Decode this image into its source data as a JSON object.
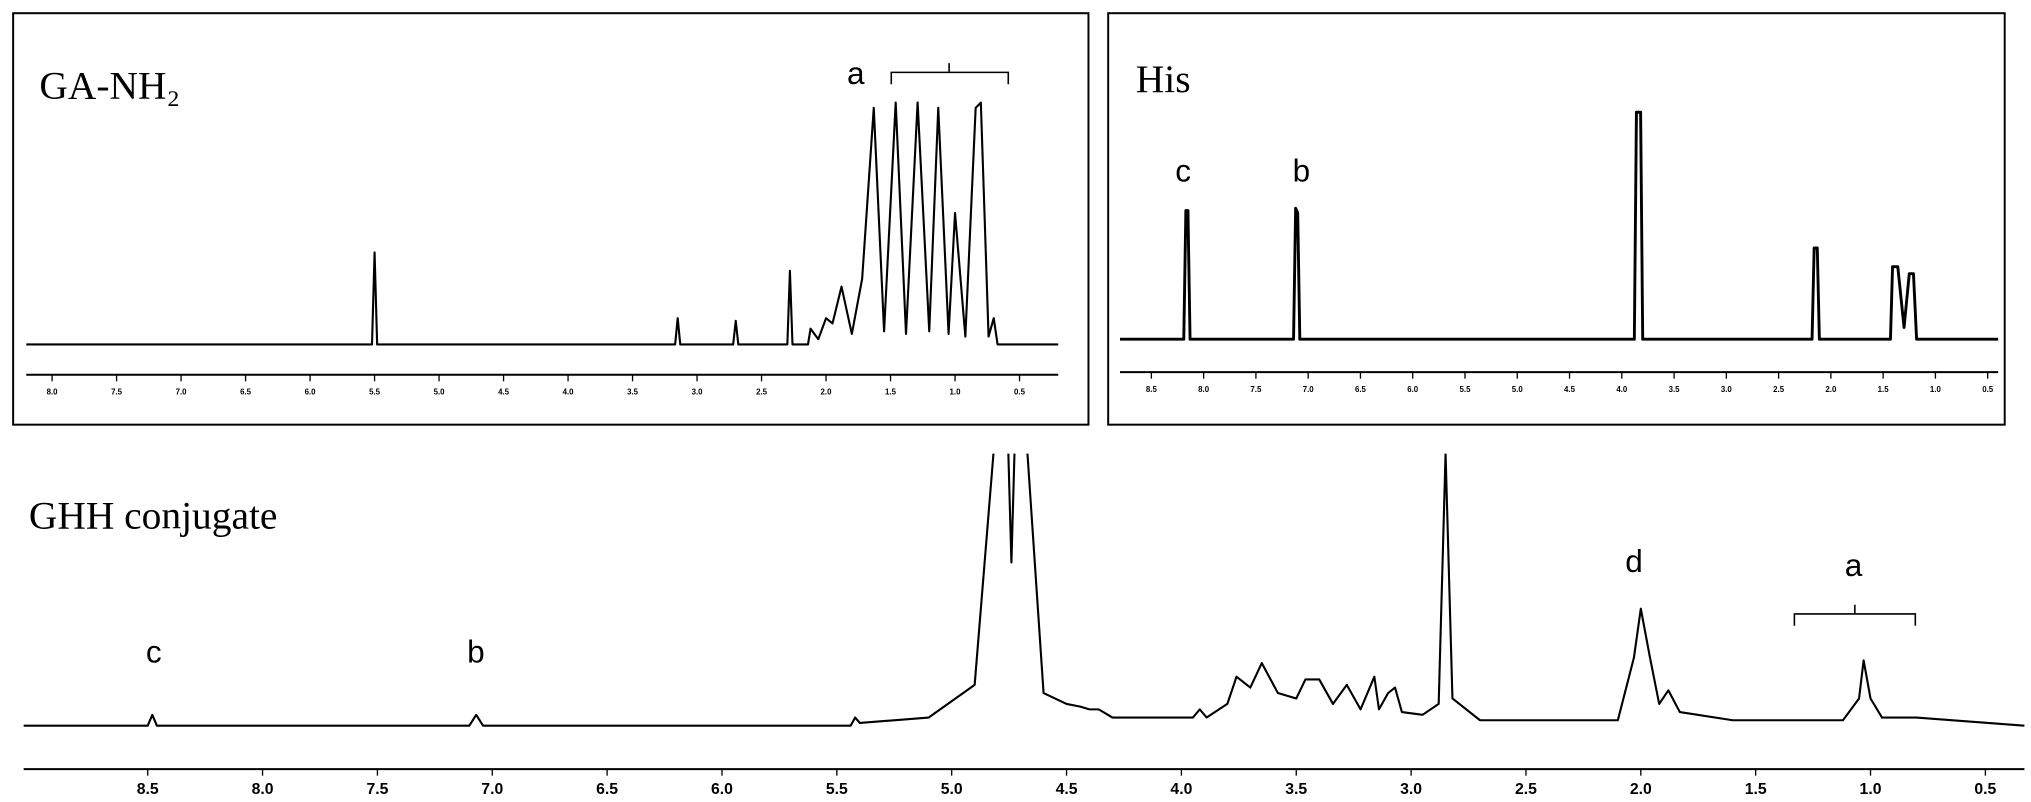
{
  "chart_data": [
    {
      "type": "line",
      "title": "GA-NH₂",
      "color": "#000000",
      "xlim": [
        8.2,
        0.2
      ],
      "ylim": [
        0,
        100
      ],
      "xticks": [
        {
          "value": 8,
          "label": "8.0"
        },
        7.5,
        {
          "value": 7,
          "label": "7.0"
        },
        6.5,
        {
          "value": 6,
          "label": "6.0"
        },
        5.5,
        {
          "value": 5,
          "label": "5.0"
        },
        4.5,
        {
          "value": 4,
          "label": "4.0"
        },
        3.5,
        {
          "value": 3,
          "label": "3.0"
        },
        2.5,
        {
          "value": 2,
          "label": "2.0"
        },
        1.5,
        {
          "value": 1,
          "label": "1.0"
        },
        0.5
      ],
      "annotations": [
        "a"
      ],
      "x": [
        8.2,
        5.52,
        5.5,
        5.48,
        3.17,
        3.15,
        3.13,
        2.72,
        2.7,
        2.68,
        2.3,
        2.28,
        2.26,
        2.14,
        2.12,
        2.06,
        2.0,
        1.95,
        1.88,
        1.8,
        1.72,
        1.63,
        1.55,
        1.46,
        1.38,
        1.29,
        1.2,
        1.13,
        1.05,
        1.0,
        0.92,
        0.84,
        0.8,
        0.74,
        0.7,
        0.67,
        0.2
      ],
      "values": [
        0,
        0,
        35,
        0,
        0,
        10,
        0,
        0,
        9,
        0,
        0,
        28,
        0,
        0,
        6,
        2,
        10,
        8,
        22,
        4,
        25,
        90,
        5,
        92,
        4,
        92,
        5,
        90,
        4,
        50,
        3,
        90,
        92,
        3,
        10,
        0,
        0
      ]
    },
    {
      "type": "line",
      "title": "His",
      "color": "#000000",
      "xlim": [
        8.8,
        0.4
      ],
      "ylim": [
        0,
        100
      ],
      "xticks": [
        8.5,
        {
          "value": 8,
          "label": "8.0"
        },
        7.5,
        {
          "value": 7,
          "label": "7.0"
        },
        6.5,
        {
          "value": 6,
          "label": "6.0"
        },
        5.5,
        {
          "value": 5,
          "label": "5.0"
        },
        4.5,
        {
          "value": 4,
          "label": "4.0"
        },
        3.5,
        {
          "value": 3,
          "label": "3.0"
        },
        2.5,
        {
          "value": 2,
          "label": "2.0"
        },
        1.5,
        {
          "value": 1,
          "label": "1.0"
        },
        0.5
      ],
      "annotations": [
        "c",
        "b"
      ],
      "x": [
        8.8,
        8.19,
        8.17,
        8.15,
        8.13,
        7.14,
        7.12,
        7.1,
        7.08,
        3.88,
        3.86,
        3.82,
        3.8,
        2.18,
        2.16,
        2.13,
        2.11,
        1.43,
        1.41,
        1.36,
        1.3,
        1.25,
        1.21,
        1.18,
        0.4
      ],
      "values": [
        0,
        0,
        55,
        55,
        0,
        0,
        56,
        54,
        0,
        0,
        97,
        97,
        0,
        0,
        39,
        39,
        0,
        0,
        31,
        31,
        5,
        28,
        28,
        0,
        0
      ]
    },
    {
      "type": "line",
      "title": "GHH conjugate",
      "color": "#000000",
      "xlim": [
        9.04,
        0.33
      ],
      "ylim": [
        0,
        100
      ],
      "xticks": [
        8.5,
        {
          "value": 8,
          "label": "8.0"
        },
        7.5,
        {
          "value": 7,
          "label": "7.0"
        },
        6.5,
        {
          "value": 6,
          "label": "6.0"
        },
        5.5,
        {
          "value": 5,
          "label": "5.0"
        },
        4.5,
        {
          "value": 4,
          "label": "4.0"
        },
        3.5,
        {
          "value": 3,
          "label": "3.0"
        },
        2.5,
        {
          "value": 2,
          "label": "2.0"
        },
        1.5,
        {
          "value": 1,
          "label": "1.0"
        },
        0.5
      ],
      "annotations": [
        "c",
        "b",
        "d",
        "a"
      ],
      "x": [
        9.04,
        8.5,
        8.48,
        8.46,
        7.1,
        7.07,
        7.04,
        5.44,
        5.42,
        5.4,
        5.1,
        4.9,
        4.77,
        4.74,
        4.71,
        4.6,
        4.5,
        4.44,
        4.4,
        4.36,
        4.3,
        3.95,
        3.92,
        3.89,
        3.8,
        3.76,
        3.7,
        3.65,
        3.58,
        3.5,
        3.46,
        3.4,
        3.34,
        3.28,
        3.22,
        3.16,
        3.14,
        3.1,
        3.07,
        3.04,
        2.95,
        2.88,
        2.85,
        2.82,
        2.7,
        2.1,
        2.03,
        2.0,
        1.96,
        1.92,
        1.88,
        1.83,
        1.6,
        1.12,
        1.05,
        1.03,
        1.0,
        0.95,
        0.8,
        0.33
      ],
      "values": [
        0,
        0,
        4,
        0,
        0,
        4,
        0,
        0,
        3,
        1,
        3,
        15,
        150,
        60,
        150,
        12,
        8,
        7,
        6,
        6,
        3,
        3,
        6,
        3,
        8,
        18,
        14,
        23,
        12,
        10,
        17,
        17,
        8,
        15,
        6,
        18,
        6,
        12,
        14,
        5,
        4,
        8,
        100,
        10,
        2,
        2,
        25,
        43,
        25,
        8,
        13,
        5,
        2,
        2,
        10,
        24,
        10,
        3,
        3,
        0
      ]
    }
  ]
}
